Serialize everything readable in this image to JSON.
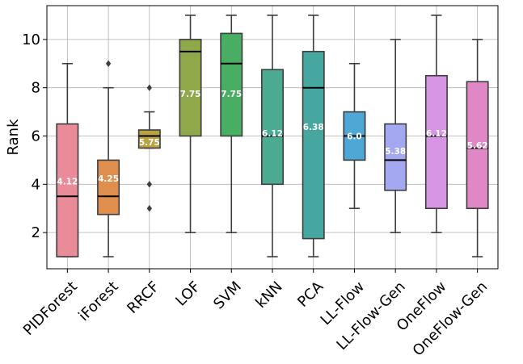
{
  "chart_data": {
    "type": "box",
    "title": "",
    "xlabel": "",
    "ylabel": "Rank",
    "ylim": [
      0.5,
      11.4
    ],
    "yticks": [
      "2",
      "4",
      "6",
      "8",
      "10"
    ],
    "grid": true,
    "legend": "none",
    "categories": [
      "PIDForest",
      "iForest",
      "RRCF",
      "LOF",
      "SVM",
      "kNN",
      "PCA",
      "LL-Flow",
      "LL-Flow-Gen",
      "OneFlow",
      "OneFlow-Gen"
    ],
    "boxes": [
      {
        "whisker_low": 1,
        "q1": 1.0,
        "median": 3.5,
        "q3": 6.5,
        "whisker_high": 9,
        "outliers": [],
        "mean_label": "4.12",
        "mean": 4.12,
        "color": "#e98b98"
      },
      {
        "whisker_low": 1,
        "q1": 2.75,
        "median": 3.5,
        "q3": 5.0,
        "whisker_high": 8,
        "outliers": [
          9
        ],
        "mean_label": "4.25",
        "mean": 4.25,
        "color": "#df8e4e"
      },
      {
        "whisker_low": 5.5,
        "q1": 5.5,
        "median": 6.0,
        "q3": 6.25,
        "whisker_high": 7,
        "outliers": [
          8,
          4,
          3
        ],
        "mean_label": "5.75",
        "mean": 5.75,
        "color": "#b9a243"
      },
      {
        "whisker_low": 2,
        "q1": 6.0,
        "median": 9.5,
        "q3": 10.0,
        "whisker_high": 11,
        "outliers": [],
        "mean_label": "7.75",
        "mean": 7.75,
        "color": "#8ea84a"
      },
      {
        "whisker_low": 2,
        "q1": 6.0,
        "median": 9.0,
        "q3": 10.25,
        "whisker_high": 11,
        "outliers": [],
        "mean_label": "7.75",
        "mean": 7.75,
        "color": "#49ad64"
      },
      {
        "whisker_low": 1,
        "q1": 4.0,
        "median": 6.0,
        "q3": 8.75,
        "whisker_high": 11,
        "outliers": [],
        "mean_label": "6.12",
        "mean": 6.12,
        "color": "#4aab92"
      },
      {
        "whisker_low": 1,
        "q1": 1.75,
        "median": 8.0,
        "q3": 9.5,
        "whisker_high": 11,
        "outliers": [],
        "mean_label": "6.38",
        "mean": 6.38,
        "color": "#45a7a0"
      },
      {
        "whisker_low": 3,
        "q1": 5.0,
        "median": 6.0,
        "q3": 7.0,
        "whisker_high": 9,
        "outliers": [],
        "mean_label": "6.0",
        "mean": 6.0,
        "color": "#4ea7d4"
      },
      {
        "whisker_low": 2,
        "q1": 3.75,
        "median": 5.0,
        "q3": 6.5,
        "whisker_high": 10,
        "outliers": [],
        "mean_label": "5.38",
        "mean": 5.38,
        "color": "#a3a8f0"
      },
      {
        "whisker_low": 2,
        "q1": 3.0,
        "median": 6.0,
        "q3": 8.5,
        "whisker_high": 11,
        "outliers": [],
        "mean_label": "6.12",
        "mean": 6.12,
        "color": "#d595e2"
      },
      {
        "whisker_low": 1,
        "q1": 3.0,
        "median": 5.5,
        "q3": 8.25,
        "whisker_high": 10,
        "outliers": [],
        "mean_label": "5.62",
        "mean": 5.62,
        "color": "#e088c6"
      }
    ]
  }
}
